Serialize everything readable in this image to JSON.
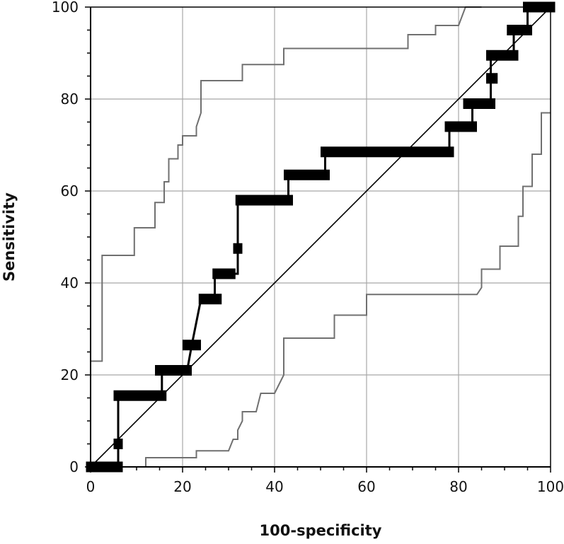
{
  "chart_data": {
    "type": "line",
    "title": "",
    "xlabel": "100-specificity",
    "ylabel": "Sensitivity",
    "xlim": [
      0,
      100
    ],
    "ylim": [
      0,
      100
    ],
    "xticks": [
      0,
      20,
      40,
      60,
      80,
      100
    ],
    "yticks": [
      0,
      20,
      40,
      60,
      80,
      100
    ],
    "grid": true,
    "legend": "none",
    "diagonal": [
      [
        0,
        0
      ],
      [
        100,
        100
      ]
    ],
    "series": [
      {
        "role": "roc",
        "color": "#000000",
        "points": [
          [
            0,
            0
          ],
          [
            6,
            0
          ],
          [
            6,
            5
          ],
          [
            6,
            15.5
          ],
          [
            15.5,
            15.5
          ],
          [
            15.5,
            21
          ],
          [
            21,
            21
          ],
          [
            22,
            26.5
          ],
          [
            24,
            36.5
          ],
          [
            27,
            36.5
          ],
          [
            27,
            42
          ],
          [
            32,
            42
          ],
          [
            32,
            47.5
          ],
          [
            32,
            58
          ],
          [
            43,
            58
          ],
          [
            43,
            63.5
          ],
          [
            51,
            63.5
          ],
          [
            51,
            68.5
          ],
          [
            78,
            68.5
          ],
          [
            78,
            74
          ],
          [
            83,
            74
          ],
          [
            83,
            79
          ],
          [
            87,
            79
          ],
          [
            87,
            84.5
          ],
          [
            87,
            89.5
          ],
          [
            92,
            89.5
          ],
          [
            92,
            95
          ],
          [
            95,
            95
          ],
          [
            95,
            100
          ],
          [
            100,
            100
          ]
        ],
        "markers": [
          {
            "x1": -1,
            "x2": 7,
            "y": 0
          },
          {
            "x1": 5,
            "x2": 7,
            "y": 5
          },
          {
            "x1": 5,
            "x2": 16.5,
            "y": 15.5
          },
          {
            "x1": 14,
            "x2": 22,
            "y": 21
          },
          {
            "x1": 20,
            "x2": 24,
            "y": 26.5
          },
          {
            "x1": 23.5,
            "x2": 28.5,
            "y": 36.5
          },
          {
            "x1": 26.5,
            "x2": 31.5,
            "y": 42
          },
          {
            "x1": 31,
            "x2": 33,
            "y": 47.5
          },
          {
            "x1": 31.5,
            "x2": 44,
            "y": 58
          },
          {
            "x1": 42,
            "x2": 52,
            "y": 63.5
          },
          {
            "x1": 50,
            "x2": 79,
            "y": 68.5
          },
          {
            "x1": 77,
            "x2": 84,
            "y": 74
          },
          {
            "x1": 81,
            "x2": 88,
            "y": 79
          },
          {
            "x1": 86,
            "x2": 88.5,
            "y": 84.5
          },
          {
            "x1": 86,
            "x2": 93,
            "y": 89.5
          },
          {
            "x1": 90.5,
            "x2": 96,
            "y": 95
          },
          {
            "x1": 94,
            "x2": 101,
            "y": 100
          }
        ]
      },
      {
        "role": "upper-confidence-bound",
        "color": "#707070",
        "points": [
          [
            0,
            23
          ],
          [
            2.5,
            23
          ],
          [
            2.5,
            46
          ],
          [
            9.5,
            46
          ],
          [
            9.5,
            52
          ],
          [
            14,
            52
          ],
          [
            14,
            57.5
          ],
          [
            16,
            57.5
          ],
          [
            16,
            62
          ],
          [
            17,
            62
          ],
          [
            17,
            67
          ],
          [
            19,
            67
          ],
          [
            19,
            70
          ],
          [
            20,
            70
          ],
          [
            20,
            72
          ],
          [
            23,
            72
          ],
          [
            23,
            74
          ],
          [
            24,
            77
          ],
          [
            24,
            84
          ],
          [
            33,
            84
          ],
          [
            33,
            87.5
          ],
          [
            42,
            87.5
          ],
          [
            42,
            91
          ],
          [
            69,
            91
          ],
          [
            69,
            94
          ],
          [
            75,
            94
          ],
          [
            75,
            96
          ],
          [
            80,
            96
          ],
          [
            81.5,
            100
          ],
          [
            85,
            100
          ]
        ]
      },
      {
        "role": "lower-confidence-bound",
        "color": "#707070",
        "points": [
          [
            12,
            0
          ],
          [
            12,
            2
          ],
          [
            23,
            2
          ],
          [
            23,
            3.5
          ],
          [
            30,
            3.5
          ],
          [
            31,
            6
          ],
          [
            32,
            6
          ],
          [
            32,
            8
          ],
          [
            33,
            10
          ],
          [
            33,
            12
          ],
          [
            36,
            12
          ],
          [
            37,
            16
          ],
          [
            40,
            16
          ],
          [
            42,
            20
          ],
          [
            42,
            28
          ],
          [
            53,
            28
          ],
          [
            53,
            33
          ],
          [
            60,
            33
          ],
          [
            60,
            37.5
          ],
          [
            84,
            37.5
          ],
          [
            85,
            39
          ],
          [
            85,
            43
          ],
          [
            89,
            43
          ],
          [
            89,
            48
          ],
          [
            93,
            48
          ],
          [
            93,
            54.5
          ],
          [
            94,
            54.5
          ],
          [
            94,
            61
          ],
          [
            96,
            61
          ],
          [
            96,
            68
          ],
          [
            98,
            68
          ],
          [
            98,
            77
          ],
          [
            100,
            77
          ]
        ]
      }
    ]
  }
}
